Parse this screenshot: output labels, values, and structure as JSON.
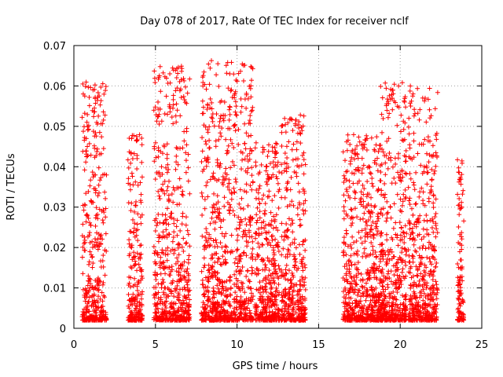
{
  "chart_data": {
    "type": "scatter",
    "title": "Day 078 of 2017, Rate Of TEC Index for receiver nclf",
    "xlabel": "GPS time / hours",
    "ylabel": "ROTI / TECUs",
    "xlim": [
      0,
      25
    ],
    "ylim": [
      0,
      0.07
    ],
    "x_ticks": [
      "0",
      "5",
      "10",
      "15",
      "20",
      "25"
    ],
    "y_ticks": [
      "0",
      "0.01",
      "0.02",
      "0.03",
      "0.04",
      "0.05",
      "0.06",
      "0.07"
    ],
    "grid": true,
    "marker": "+",
    "color": "#ff0000",
    "clusters": [
      {
        "x": [
          0.5,
          2.0
        ],
        "y_max": 0.061
      },
      {
        "x": [
          3.3,
          4.2
        ],
        "y_max": 0.048
      },
      {
        "x": [
          4.9,
          7.1
        ],
        "y_max": 0.065
      },
      {
        "x": [
          7.8,
          11.0
        ],
        "y_max": 0.067
      },
      {
        "x": [
          11.1,
          12.6
        ],
        "y_max": 0.046
      },
      {
        "x": [
          12.7,
          14.2
        ],
        "y_max": 0.053
      },
      {
        "x": [
          16.5,
          19.0
        ],
        "y_max": 0.048
      },
      {
        "x": [
          18.8,
          20.4
        ],
        "y_max": 0.061
      },
      {
        "x": [
          20.5,
          22.3
        ],
        "y_max": 0.06
      },
      {
        "x": [
          23.5,
          23.9
        ],
        "y_max": 0.042
      }
    ]
  }
}
